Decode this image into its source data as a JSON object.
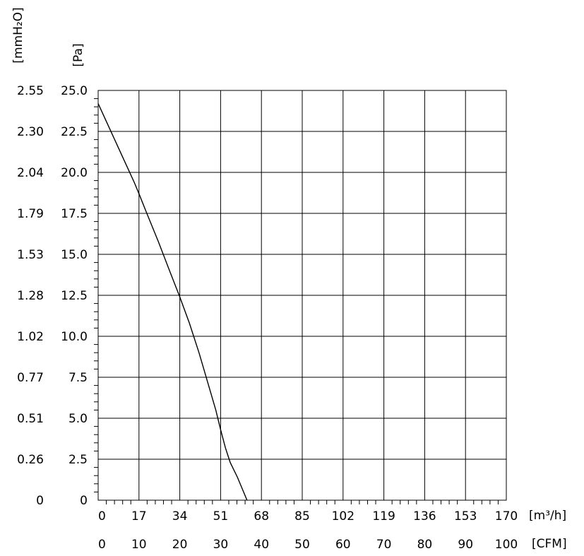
{
  "chart_data": {
    "type": "line",
    "title": "",
    "y_axes": [
      {
        "id": "mmH2O",
        "unit_label": "[mmH₂O]",
        "tick_labels": [
          "0",
          "0.26",
          "0.51",
          "0.77",
          "1.02",
          "1.28",
          "1.53",
          "1.79",
          "2.04",
          "2.30",
          "2.55"
        ]
      },
      {
        "id": "Pa",
        "unit_label": "[Pa]",
        "tick_labels": [
          "0",
          "2.5",
          "5.0",
          "7.5",
          "10.0",
          "12.5",
          "15.0",
          "17.5",
          "20.0",
          "22.5",
          "25.0"
        ]
      }
    ],
    "x_axes": [
      {
        "id": "m3h",
        "unit_label": "[m³/h]",
        "tick_labels": [
          "0",
          "17",
          "34",
          "51",
          "68",
          "85",
          "102",
          "119",
          "136",
          "153",
          "170"
        ]
      },
      {
        "id": "CFM",
        "unit_label": "[CFM]",
        "tick_labels": [
          "0",
          "10",
          "20",
          "30",
          "40",
          "50",
          "60",
          "70",
          "80",
          "90",
          "100"
        ]
      }
    ],
    "xlim": [
      0,
      170
    ],
    "ylim": [
      0,
      25
    ],
    "grid": true,
    "series": [
      {
        "x": [
          0,
          5,
          10,
          15,
          17,
          20,
          25,
          30,
          34,
          38,
          42,
          46,
          49,
          51,
          53,
          55,
          58,
          62
        ],
        "y": [
          24.2,
          22.6,
          21.0,
          19.4,
          18.7,
          17.6,
          15.8,
          13.9,
          12.4,
          10.8,
          9.0,
          7.0,
          5.5,
          4.3,
          3.2,
          2.3,
          1.4,
          0
        ]
      }
    ]
  },
  "colors": {
    "line": "#000000",
    "grid": "#000000",
    "background": "#ffffff"
  }
}
